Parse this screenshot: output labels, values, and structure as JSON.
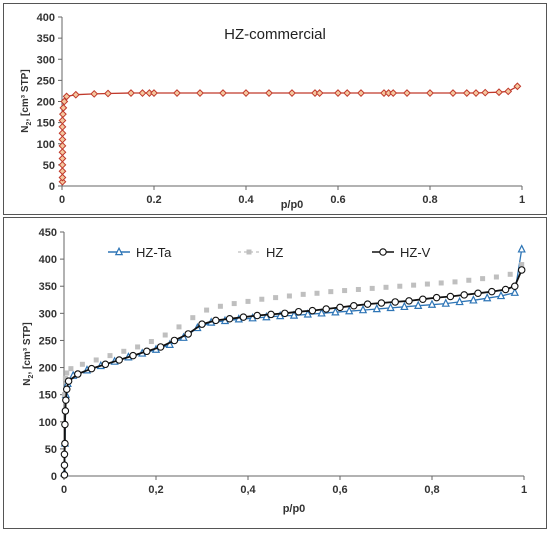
{
  "chart_data": [
    {
      "type": "line",
      "title": "HZ-commercial",
      "xlabel": "p/p0",
      "ylabel_main": "N",
      "ylabel_sub": "2",
      "ylabel_rest": ", [cm³ STP]",
      "xlim": [
        0,
        1
      ],
      "ylim": [
        0,
        400
      ],
      "x_ticks": [
        0,
        0.2,
        0.4,
        0.6,
        0.8,
        1
      ],
      "x_tick_labels": [
        "0",
        "0.2",
        "0.4",
        "0.6",
        "0.8",
        "1"
      ],
      "y_ticks": [
        0,
        50,
        100,
        150,
        200,
        250,
        300,
        350,
        400
      ],
      "y_tick_labels": [
        "0",
        "50",
        "100",
        "150",
        "200",
        "250",
        "300",
        "350",
        "400"
      ],
      "grid": false,
      "legend": "none",
      "series": [
        {
          "color": "#c0392b",
          "marker": "diamond",
          "x": [
            0.001,
            0.001,
            0.001,
            0.001,
            0.001,
            0.001,
            0.001,
            0.001,
            0.001,
            0.001,
            0.001,
            0.002,
            0.003,
            0.005,
            0.01,
            0.03,
            0.07,
            0.1,
            0.15,
            0.175,
            0.19,
            0.2,
            0.25,
            0.3,
            0.35,
            0.4,
            0.45,
            0.5,
            0.55,
            0.56,
            0.6,
            0.62,
            0.65,
            0.7,
            0.71,
            0.72,
            0.75,
            0.8,
            0.85,
            0.88,
            0.9,
            0.92,
            0.95,
            0.97,
            0.99
          ],
          "y": [
            10,
            20,
            35,
            50,
            65,
            80,
            95,
            110,
            125,
            140,
            155,
            170,
            185,
            200,
            212,
            216,
            218,
            219,
            220,
            220,
            220,
            220,
            220,
            220,
            220,
            220,
            220,
            220,
            220,
            220,
            220,
            220,
            220,
            220,
            220,
            220,
            220,
            220,
            220,
            220,
            220,
            221,
            222,
            224,
            236
          ]
        }
      ]
    },
    {
      "type": "line",
      "title": "",
      "xlabel": "p/p0",
      "ylabel_main": "N",
      "ylabel_sub": "2",
      "ylabel_rest": ", [cm³ STP]",
      "xlim": [
        0,
        1
      ],
      "ylim": [
        0,
        450
      ],
      "x_ticks": [
        0,
        0.2,
        0.4,
        0.6,
        0.8,
        1
      ],
      "x_tick_labels": [
        "0",
        "0,2",
        "0,4",
        "0,6",
        "0,8",
        "1"
      ],
      "y_ticks": [
        0,
        50,
        100,
        150,
        200,
        250,
        300,
        350,
        400,
        450
      ],
      "y_tick_labels": [
        "0",
        "50",
        "100",
        "150",
        "200",
        "250",
        "300",
        "350",
        "400",
        "450"
      ],
      "grid": false,
      "legend": "top",
      "series": [
        {
          "name": "HZ-Ta",
          "color": "#2e75b6",
          "marker": "triangle",
          "x": [
            0.001,
            0.002,
            0.004,
            0.008,
            0.02,
            0.05,
            0.08,
            0.11,
            0.14,
            0.17,
            0.2,
            0.23,
            0.26,
            0.29,
            0.32,
            0.35,
            0.38,
            0.41,
            0.44,
            0.47,
            0.5,
            0.53,
            0.56,
            0.59,
            0.62,
            0.65,
            0.68,
            0.71,
            0.74,
            0.77,
            0.8,
            0.83,
            0.86,
            0.89,
            0.92,
            0.95,
            0.98,
            0.995
          ],
          "y": [
            5,
            60,
            150,
            170,
            185,
            195,
            203,
            211,
            219,
            226,
            233,
            242,
            255,
            273,
            283,
            286,
            289,
            291,
            293,
            295,
            296,
            298,
            300,
            302,
            304,
            306,
            308,
            310,
            312,
            314,
            316,
            318,
            321,
            324,
            328,
            332,
            338,
            418
          ]
        },
        {
          "name": "HZ",
          "color": "#bfbfbf",
          "marker": "square",
          "x": [
            0.001,
            0.003,
            0.006,
            0.015,
            0.04,
            0.07,
            0.1,
            0.13,
            0.16,
            0.19,
            0.22,
            0.25,
            0.28,
            0.31,
            0.34,
            0.37,
            0.4,
            0.43,
            0.46,
            0.49,
            0.52,
            0.55,
            0.58,
            0.61,
            0.64,
            0.67,
            0.7,
            0.73,
            0.76,
            0.79,
            0.82,
            0.85,
            0.88,
            0.91,
            0.94,
            0.97,
            0.995
          ],
          "y": [
            150,
            180,
            190,
            198,
            206,
            214,
            222,
            230,
            238,
            248,
            260,
            275,
            292,
            306,
            313,
            318,
            322,
            326,
            329,
            332,
            335,
            337,
            340,
            342,
            344,
            346,
            348,
            350,
            352,
            354,
            356,
            358,
            361,
            364,
            367,
            372,
            390
          ]
        },
        {
          "name": "HZ-V",
          "color": "#111111",
          "marker": "circle",
          "x": [
            0.001,
            0.001,
            0.001,
            0.002,
            0.002,
            0.003,
            0.004,
            0.006,
            0.01,
            0.03,
            0.06,
            0.09,
            0.12,
            0.15,
            0.18,
            0.21,
            0.24,
            0.27,
            0.3,
            0.33,
            0.36,
            0.39,
            0.42,
            0.45,
            0.48,
            0.51,
            0.54,
            0.57,
            0.6,
            0.63,
            0.66,
            0.69,
            0.72,
            0.75,
            0.78,
            0.81,
            0.84,
            0.87,
            0.9,
            0.93,
            0.96,
            0.98,
            0.995
          ],
          "y": [
            2,
            20,
            40,
            60,
            95,
            120,
            140,
            160,
            175,
            188,
            198,
            206,
            214,
            222,
            230,
            238,
            250,
            262,
            280,
            287,
            290,
            293,
            296,
            298,
            300,
            303,
            305,
            308,
            311,
            314,
            317,
            319,
            321,
            323,
            326,
            329,
            331,
            334,
            337,
            340,
            344,
            350,
            380
          ]
        }
      ]
    }
  ]
}
